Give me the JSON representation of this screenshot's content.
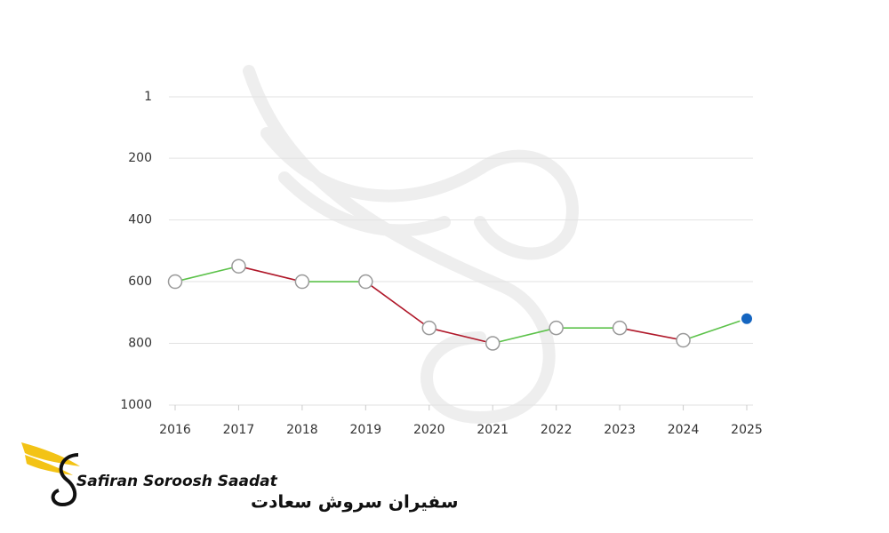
{
  "chart_data": {
    "type": "line",
    "categories": [
      "2016",
      "2017",
      "2018",
      "2019",
      "2020",
      "2021",
      "2022",
      "2023",
      "2024",
      "2025"
    ],
    "values": [
      600,
      550,
      600,
      600,
      750,
      800,
      750,
      750,
      790,
      720
    ],
    "ylim": [
      1,
      1000
    ],
    "inverted": true,
    "yticks": [
      1,
      200,
      400,
      600,
      800,
      1000
    ],
    "grid": true,
    "better_color": "#5cc24a",
    "worse_color": "#b0182a",
    "last_point_color": "#1565c0"
  },
  "logo": {
    "name_en": "Safiran Soroosh Saadat",
    "name_fa": "سفیران سروش سعادت"
  }
}
